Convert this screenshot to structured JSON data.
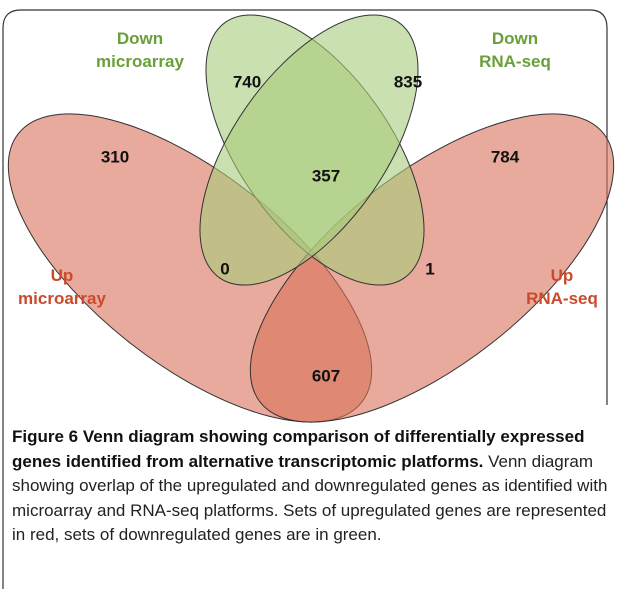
{
  "venn": {
    "sets": [
      {
        "name": [
          "Down",
          "microarray"
        ]
      },
      {
        "name": [
          "Down",
          "RNA-seq"
        ]
      },
      {
        "name": [
          "Up",
          "microarray"
        ]
      },
      {
        "name": [
          "Up",
          "RNA-seq"
        ]
      }
    ],
    "regions": {
      "down_microarray_only": "740",
      "down_rnaseq_only": "835",
      "up_microarray_only": "310",
      "up_rnaseq_only": "784",
      "down_both": "357",
      "up_microarray_down_microarray": "0",
      "up_rnaseq_down_rnaseq": "1",
      "up_both": "607"
    }
  },
  "caption": {
    "title": "Figure 6 Venn diagram showing comparison of differentially expressed genes identified from alternative transcriptomic platforms.",
    "text": "Venn diagram showing overlap of the upregulated and downregulated genes as identified with microarray and RNA-seq platforms. Sets of upregulated genes are represented in red, sets of downregulated genes are in green."
  }
}
